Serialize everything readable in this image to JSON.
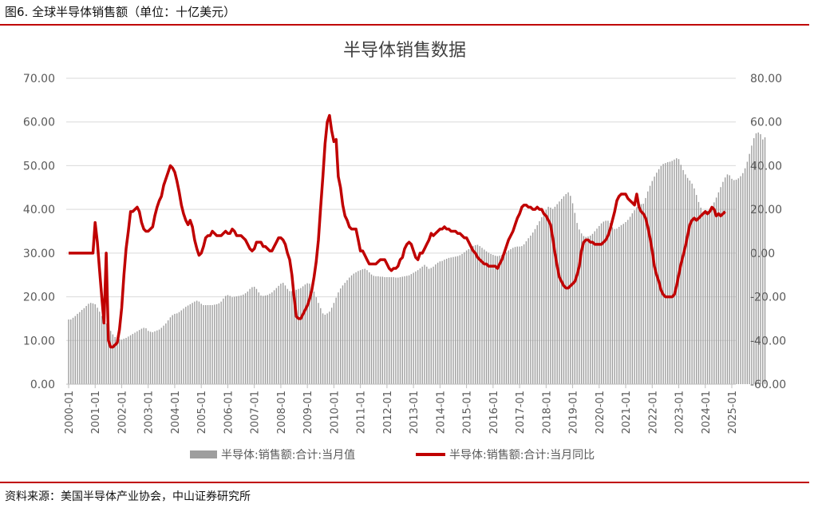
{
  "figure_caption": "图6. 全球半导体销售额（单位：十亿美元）",
  "source_note": "资料来源：美国半导体产业协会，中山证券研究所",
  "colors": {
    "bars": "#9e9e9e",
    "line": "#c00000",
    "rule": "#c00000"
  },
  "chart_data": {
    "type": "bar",
    "title": "半导体销售数据",
    "xlabel": "",
    "ylabel": "",
    "ylim": [
      0,
      70
    ],
    "y2lim": [
      -60,
      80
    ],
    "y_ticks": [
      "0.00",
      "10.00",
      "20.00",
      "30.00",
      "40.00",
      "50.00",
      "60.00",
      "70.00"
    ],
    "y2_ticks": [
      "-60.00",
      "-40.00",
      "-20.00",
      "0.00",
      "20.00",
      "40.00",
      "60.00",
      "80.00"
    ],
    "x_ticks": [
      "2000-01",
      "2001-01",
      "2002-01",
      "2003-01",
      "2004-01",
      "2005-01",
      "2006-01",
      "2007-01",
      "2008-01",
      "2009-01",
      "2010-01",
      "2011-01",
      "2012-01",
      "2013-01",
      "2014-01",
      "2015-01",
      "2016-01",
      "2017-01",
      "2018-01",
      "2019-01",
      "2020-01",
      "2021-01",
      "2022-01",
      "2023-01",
      "2024-01",
      "2025-01"
    ],
    "grid": true,
    "legend_position": "bottom",
    "series": [
      {
        "name": "半导体:销售额:合计:当月值",
        "type": "bar",
        "axis": "left",
        "start": "2000-01",
        "frequency": "monthly",
        "values": [
          14.8,
          14.8,
          15.2,
          15.6,
          16.1,
          16.5,
          17.0,
          17.4,
          17.9,
          18.4,
          18.6,
          18.5,
          18.3,
          17.5,
          16.6,
          15.6,
          14.7,
          13.9,
          13.1,
          12.2,
          11.4,
          10.8,
          10.4,
          10.3,
          10.2,
          10.4,
          10.6,
          10.9,
          11.2,
          11.5,
          11.8,
          12.1,
          12.4,
          12.7,
          12.9,
          12.8,
          12.2,
          12.0,
          11.9,
          12.1,
          12.3,
          12.5,
          12.9,
          13.4,
          13.9,
          14.6,
          15.3,
          15.8,
          16.1,
          16.2,
          16.5,
          16.9,
          17.3,
          17.7,
          18.0,
          18.3,
          18.6,
          18.9,
          19.1,
          18.9,
          18.4,
          18.1,
          18.1,
          18.1,
          18.1,
          18.1,
          18.2,
          18.3,
          18.5,
          18.9,
          19.6,
          20.2,
          20.4,
          20.2,
          19.9,
          20.0,
          20.1,
          20.2,
          20.3,
          20.5,
          20.8,
          21.2,
          21.8,
          22.2,
          22.3,
          21.8,
          21.0,
          20.3,
          20.2,
          20.3,
          20.4,
          20.7,
          21.0,
          21.5,
          22.0,
          22.5,
          23.0,
          23.2,
          22.6,
          21.8,
          21.3,
          21.3,
          21.4,
          21.6,
          21.8,
          22.0,
          22.4,
          22.8,
          23.1,
          23.0,
          22.3,
          21.2,
          19.9,
          18.6,
          17.4,
          16.2,
          15.9,
          16.2,
          16.6,
          17.5,
          18.6,
          19.8,
          21.0,
          21.9,
          22.6,
          23.2,
          23.8,
          24.4,
          24.9,
          25.3,
          25.6,
          25.9,
          26.1,
          26.3,
          26.4,
          26.1,
          25.6,
          25.1,
          24.8,
          24.7,
          24.7,
          24.6,
          24.6,
          24.5,
          24.5,
          24.5,
          24.5,
          24.5,
          24.4,
          24.4,
          24.5,
          24.6,
          24.7,
          24.8,
          24.9,
          25.2,
          25.5,
          25.8,
          26.1,
          26.5,
          26.9,
          27.3,
          26.9,
          26.4,
          26.6,
          26.9,
          27.4,
          27.8,
          28.1,
          28.2,
          28.5,
          28.7,
          28.9,
          29.0,
          29.1,
          29.2,
          29.3,
          29.5,
          29.8,
          30.2,
          30.6,
          30.9,
          31.3,
          31.6,
          31.8,
          31.9,
          31.6,
          31.2,
          30.8,
          30.4,
          30.1,
          29.8,
          29.6,
          29.4,
          29.3,
          29.4,
          29.6,
          29.8,
          30.2,
          30.6,
          30.9,
          31.2,
          31.4,
          31.5,
          31.5,
          31.6,
          32.0,
          32.7,
          33.4,
          34.0,
          34.7,
          35.5,
          36.4,
          37.3,
          38.2,
          39.1,
          39.9,
          40.6,
          40.4,
          40.1,
          40.6,
          41.2,
          41.8,
          42.4,
          43.0,
          43.5,
          43.9,
          43.1,
          41.4,
          39.2,
          36.9,
          35.4,
          34.5,
          33.9,
          33.7,
          33.8,
          34.0,
          34.4,
          35.0,
          35.6,
          36.2,
          36.8,
          37.2,
          37.4,
          37.4,
          36.9,
          35.9,
          35.5,
          35.6,
          36.0,
          36.4,
          36.7,
          37.1,
          37.6,
          38.3,
          39.1,
          39.8,
          40.5,
          41.0,
          41.2,
          41.3,
          42.6,
          44.1,
          45.4,
          46.5,
          47.5,
          48.4,
          49.2,
          49.9,
          50.4,
          50.6,
          50.8,
          50.9,
          51.1,
          51.4,
          51.7,
          51.5,
          50.2,
          49.0,
          48.0,
          47.2,
          46.6,
          45.9,
          44.8,
          43.3,
          41.7,
          40.4,
          39.5,
          39.5,
          39.7,
          40.0,
          40.7,
          41.6,
          42.7,
          43.9,
          45.1,
          46.3,
          47.3,
          48.0,
          47.8,
          47.0,
          46.7,
          46.8,
          47.1,
          47.6,
          48.3,
          49.4,
          50.9,
          52.7,
          54.6,
          56.3,
          57.4,
          57.6,
          57.2,
          56.0,
          56.5
        ]
      },
      {
        "name": "半导体:销售额:合计:当月同比",
        "type": "line",
        "axis": "right",
        "start": "2000-01",
        "frequency": "monthly",
        "values": [
          0,
          0,
          0,
          0,
          0,
          0,
          0,
          0,
          0,
          0,
          0,
          0,
          14,
          5,
          -8,
          -20,
          -32,
          0,
          -40,
          -43,
          -43,
          -42,
          -41,
          -35,
          -25,
          -10,
          2,
          10,
          19,
          19,
          20,
          21,
          19,
          14,
          11,
          10,
          10,
          11,
          12,
          17,
          21,
          24,
          26,
          31,
          34,
          37,
          40,
          39,
          37,
          33,
          28,
          22,
          18,
          15,
          13,
          15,
          12,
          6,
          2,
          -1,
          0,
          3,
          7,
          8,
          8,
          10,
          9,
          8,
          8,
          8,
          9,
          10,
          9,
          9,
          11,
          10,
          8,
          8,
          8,
          7,
          6,
          4,
          2,
          1,
          2,
          5,
          5,
          5,
          3,
          3,
          2,
          1,
          1,
          3,
          5,
          7,
          7,
          6,
          4,
          0,
          -3,
          -10,
          -20,
          -29,
          -30,
          -30,
          -28,
          -26,
          -24,
          -21,
          -17,
          -11,
          -4,
          6,
          21,
          35,
          50,
          60,
          63,
          56,
          51,
          52,
          35,
          30,
          22,
          17,
          15,
          12,
          11,
          11,
          11,
          6,
          1,
          1,
          -1,
          -3,
          -5,
          -5,
          -5,
          -5,
          -4,
          -3,
          -3,
          -3,
          -5,
          -7,
          -8,
          -7,
          -7,
          -6,
          -3,
          -2,
          2,
          4,
          5,
          4,
          1,
          -2,
          -3,
          0,
          0,
          2,
          4,
          6,
          9,
          8,
          9,
          10,
          11,
          11,
          12,
          11,
          11,
          10,
          10,
          10,
          9,
          9,
          8,
          7,
          7,
          5,
          3,
          1,
          0,
          -2,
          -3,
          -4,
          -5,
          -5,
          -6,
          -6,
          -6,
          -6,
          -7,
          -5,
          -3,
          0,
          3,
          6,
          8,
          10,
          13,
          16,
          18,
          21,
          22,
          22,
          21,
          21,
          20,
          20,
          21,
          20,
          20,
          18,
          17,
          15,
          13,
          7,
          0,
          -6,
          -11,
          -13,
          -15,
          -16,
          -16,
          -15,
          -14,
          -13,
          -10,
          -6,
          1,
          5,
          6,
          6,
          5,
          5,
          4,
          4,
          4,
          4,
          5,
          6,
          8,
          11,
          15,
          19,
          24,
          26,
          27,
          27,
          27,
          25,
          24,
          23,
          22,
          27,
          21,
          19,
          18,
          16,
          12,
          7,
          1,
          -6,
          -10,
          -13,
          -17,
          -19,
          -20,
          -20,
          -20,
          -20,
          -19,
          -15,
          -10,
          -5,
          -1,
          3,
          8,
          13,
          15,
          16,
          15,
          16,
          17,
          18,
          19,
          18,
          19,
          21,
          20,
          17,
          18,
          17,
          18,
          19
        ]
      }
    ]
  }
}
